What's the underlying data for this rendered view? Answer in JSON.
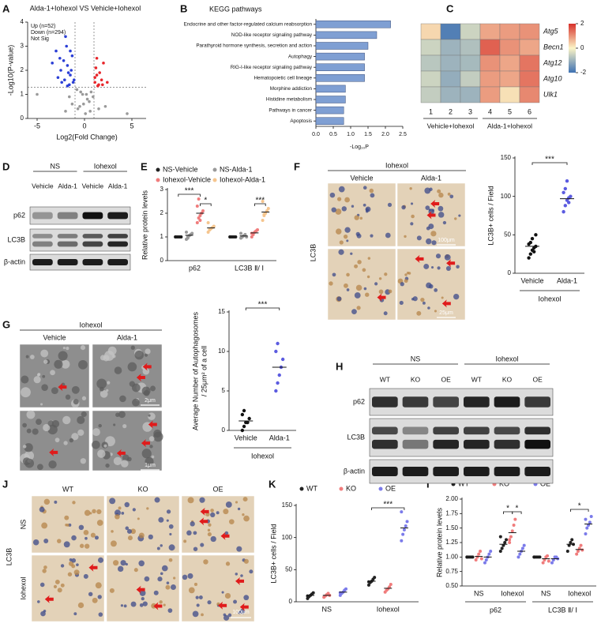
{
  "chart_data": [
    {
      "panel": "A",
      "type": "volcano",
      "title": "Alda-1+Iohexol VS Vehicle+Iohexol",
      "x_label": "Log2(Fold Change)",
      "y_label": "-Log10(P-value)",
      "xlim": [
        -6,
        6.5
      ],
      "xticks": [
        -5,
        0,
        5
      ],
      "ylim": [
        0,
        4
      ],
      "yticks": [
        0,
        1,
        2,
        3,
        4
      ],
      "thresholds": {
        "x": [
          -1,
          1
        ],
        "y": 1.3
      },
      "series": [
        {
          "name": "Up (n=52)",
          "color": "#e8262b",
          "x": [
            1.1,
            1.3,
            1.5,
            1.2,
            1.8,
            2.0,
            1.4,
            1.6,
            2.4,
            1.3,
            1.9,
            1.1
          ],
          "values": [
            1.5,
            1.8,
            1.4,
            2.1,
            1.6,
            2.3,
            1.35,
            1.9,
            1.5,
            2.5,
            1.4,
            1.7
          ]
        },
        {
          "name": "Down (n=294)",
          "color": "#2b3fd6",
          "x": [
            -1.2,
            -1.5,
            -1.8,
            -2.1,
            -1.3,
            -2.5,
            -1.6,
            -1.9,
            -2.8,
            -1.4,
            -2.2,
            -3.0,
            -1.7,
            -2.4,
            -1.1,
            -2.0,
            -3.4,
            -1.5,
            -2.6,
            -1.8
          ],
          "values": [
            1.5,
            1.8,
            2.2,
            1.6,
            2.6,
            2.0,
            1.4,
            3.0,
            1.7,
            2.0,
            2.4,
            2.8,
            1.9,
            1.5,
            1.6,
            3.4,
            2.3,
            2.8,
            2.5,
            1.35
          ]
        },
        {
          "name": "Not Sig",
          "color": "#9a9a9a",
          "x": [
            -0.5,
            0.3,
            -0.2,
            0.6,
            -0.8,
            0.1,
            0.9,
            -1.3,
            1.5,
            -0.4,
            0.5,
            -2.0,
            2.2,
            -0.1,
            0.2,
            -5.0,
            4.5,
            -0.7,
            0.7,
            -1.6
          ],
          "values": [
            0.5,
            0.8,
            1.0,
            0.3,
            1.2,
            0.2,
            0.9,
            0.6,
            0.4,
            1.1,
            0.7,
            0.3,
            0.5,
            0.6,
            1.0,
            1.0,
            0.2,
            0.4,
            1.1,
            0.9
          ]
        }
      ]
    },
    {
      "panel": "B",
      "type": "hbar",
      "title": "KEGG pathways",
      "x_label": "-Log₁₀P",
      "color": "#7f9fd3",
      "categories": [
        "Endocrine and other factor-regulated calcium reabsorption",
        "NOD-like receptor signaling pathway",
        "Parathyroid hormone synthesis, secretion and action",
        "Autophagy",
        "RIG-I-like receptor signaling pathway",
        "Hematopoietic cell lineage",
        "Morphine addiction",
        "Histidine metabolism",
        "Pathways in cancer",
        "Apoptosis"
      ],
      "values": [
        2.15,
        1.75,
        1.5,
        1.4,
        1.4,
        1.4,
        0.85,
        0.85,
        0.8,
        0.8
      ],
      "xlim": [
        0,
        2.5
      ],
      "xticks": [
        {
          "value": 0,
          "label": "0.0"
        },
        0.5,
        {
          "value": 1,
          "label": "1.0"
        },
        1.5,
        {
          "value": 2,
          "label": "2.0"
        },
        2.5
      ]
    },
    {
      "panel": "C",
      "type": "heatmap",
      "rows": [
        "Atg5",
        "Becn1",
        "Atg12",
        "Atg10",
        "Ulk1"
      ],
      "columns": [
        "1",
        "2",
        "3",
        "4",
        "5",
        "6"
      ],
      "column_groups": [
        "Vehicle+Iohexol",
        "Alda-1+Iohexol"
      ],
      "values": [
        [
          0.3,
          -1.8,
          -0.5,
          0.8,
          0.9,
          1.0
        ],
        [
          -0.5,
          -1.0,
          -0.8,
          1.5,
          1.0,
          0.8
        ],
        [
          -0.7,
          -1.0,
          -0.9,
          1.0,
          0.8,
          1.3
        ],
        [
          -0.5,
          -1.1,
          -0.6,
          0.9,
          0.8,
          1.3
        ],
        [
          -0.6,
          -1.0,
          -1.0,
          0.9,
          0.2,
          1.1
        ]
      ],
      "clim": [
        -2,
        2
      ],
      "cticks": [
        2,
        0,
        -2
      ],
      "colormap": [
        "#3f72b3",
        "#fbf4c6",
        "#d7302a"
      ]
    },
    {
      "panel": "E",
      "type": "dot",
      "y_label": "Relative protein levels",
      "categories": [
        "p62",
        "LC3B Ⅱ/ Ⅰ"
      ],
      "ylim": [
        0,
        3
      ],
      "yticks": [
        0,
        1,
        2,
        3
      ],
      "significance": [
        "***",
        "*",
        "***"
      ],
      "series": [
        {
          "name": "NS-Vehicle",
          "color": "#222222",
          "values": [
            1,
            1
          ],
          "points": [
            [
              1,
              1,
              1,
              1,
              1,
              1
            ],
            [
              1,
              1,
              1,
              1,
              1,
              1
            ]
          ]
        },
        {
          "name": "NS-Alda-1",
          "color": "#9a9a9a",
          "values": [
            1.07,
            1.04
          ],
          "points": [
            [
              0.9,
              1.0,
              1.05,
              1.1,
              1.15,
              1.2,
              0.95
            ],
            [
              0.95,
              1.0,
              1.05,
              1.1,
              1.0,
              1.15
            ]
          ]
        },
        {
          "name": "Iohexol-Vehicle",
          "color": "#f07c7c",
          "values": [
            2.0,
            1.17
          ],
          "points": [
            [
              1.6,
              1.8,
              1.9,
              2.0,
              2.1,
              2.3,
              2.6,
              1.7
            ],
            [
              1.0,
              1.1,
              1.2,
              1.25,
              1.3,
              1.15
            ]
          ]
        },
        {
          "name": "Iohexol-Alda-1",
          "color": "#f5c58e",
          "values": [
            1.38,
            2.05
          ],
          "points": [
            [
              1.2,
              1.3,
              1.35,
              1.4,
              1.45,
              1.6,
              1.3
            ],
            [
              1.7,
              1.9,
              2.0,
              2.1,
              2.2,
              2.5,
              1.95
            ]
          ]
        }
      ]
    },
    {
      "type": "dot",
      "y_label": "LC3B+ cells / Field",
      "categories": [
        "Vehicle",
        "Alda-1"
      ],
      "group_label": "Iohexol",
      "colors": [
        "#111111",
        "#5b5be0"
      ],
      "ylim": [
        0,
        150
      ],
      "yticks": [
        0,
        50,
        100,
        150
      ],
      "significance": [
        "***"
      ],
      "values": [
        35,
        97
      ],
      "points": [
        [
          20,
          25,
          30,
          33,
          35,
          38,
          40,
          45,
          28,
          50
        ],
        [
          80,
          88,
          95,
          98,
          100,
          105,
          110,
          120,
          92
        ]
      ]
    },
    {
      "type": "dot",
      "y_label": [
        "Average Number of Autophagosomes",
        "/ 25μm² of a cell"
      ],
      "categories": [
        "Vehicle",
        "Alda-1"
      ],
      "group_label": "Iohexol",
      "colors": [
        "#111111",
        "#5b5be0"
      ],
      "ylim": [
        0,
        15
      ],
      "yticks": [
        0,
        5,
        10,
        15
      ],
      "significance": [
        "***"
      ],
      "values": [
        1.2,
        8
      ],
      "points": [
        [
          0,
          0.5,
          1,
          1,
          1.5,
          2,
          2.5
        ],
        [
          5,
          6,
          7,
          8,
          9,
          10,
          11
        ]
      ]
    },
    {
      "panel": "K",
      "type": "dot",
      "y_label": "LC3B+ cells / Field",
      "categories": [
        "NS",
        "Iohexol"
      ],
      "ylim": [
        0,
        150
      ],
      "yticks": [
        0,
        50,
        100,
        150
      ],
      "significance": [
        "***"
      ],
      "series": [
        {
          "name": "WT",
          "color": "#222222",
          "values": [
            10,
            32
          ],
          "points": [
            [
              5,
              8,
              10,
              12,
              14,
              9
            ],
            [
              26,
              30,
              32,
              35,
              38,
              31
            ]
          ]
        },
        {
          "name": "KO",
          "color": "#f07c7c",
          "values": [
            10,
            21
          ],
          "points": [
            [
              7,
              9,
              11,
              13,
              10
            ],
            [
              15,
              18,
              20,
              23,
              27
            ]
          ]
        },
        {
          "name": "OE",
          "color": "#7b7bea",
          "values": [
            15,
            115
          ],
          "points": [
            [
              10,
              13,
              15,
              18,
              20,
              14
            ],
            [
              95,
              105,
              112,
              118,
              125,
              140
            ]
          ]
        }
      ]
    },
    {
      "panel": "I",
      "type": "dot",
      "y_label": "Relative protein levels",
      "categories": [
        "NS",
        "Iohexol",
        "NS",
        "Iohexol"
      ],
      "category_groups": [
        "p62",
        "LC3B Ⅱ/ Ⅰ"
      ],
      "ylim": [
        0.5,
        2.0
      ],
      "yticks": [
        {
          "value": 0.5,
          "label": "0.50"
        },
        0.75,
        {
          "value": 1,
          "label": "1.00"
        },
        1.25,
        {
          "value": 1.5,
          "label": "1.50"
        },
        1.75,
        {
          "value": 2,
          "label": "2.00"
        }
      ],
      "significance": [
        "*",
        "*",
        "*"
      ],
      "series": [
        {
          "name": "WT",
          "color": "#222222",
          "values": [
            1,
            1.22,
            1,
            1.22
          ],
          "points": [
            [
              1,
              1,
              1,
              1,
              1,
              1
            ],
            [
              1.1,
              1.15,
              1.2,
              1.25,
              1.3,
              1.35
            ],
            [
              1,
              1,
              1,
              1,
              1,
              1
            ],
            [
              1.1,
              1.2,
              1.25,
              1.3,
              1.22
            ]
          ]
        },
        {
          "name": "KO",
          "color": "#f07c7c",
          "values": [
            1.01,
            1.42,
            0.97,
            1.13
          ],
          "points": [
            [
              0.95,
              1.0,
              1.05,
              1.1,
              0.97
            ],
            [
              1.25,
              1.35,
              1.45,
              1.55,
              1.65,
              1.3
            ],
            [
              0.9,
              0.95,
              1.0,
              1.02,
              0.93
            ],
            [
              1.05,
              1.1,
              1.15,
              1.2,
              1.12
            ]
          ]
        },
        {
          "name": "OE",
          "color": "#7b7bea",
          "values": [
            1.0,
            1.1,
            0.97,
            1.57
          ],
          "points": [
            [
              0.9,
              0.95,
              1.0,
              1.05,
              1.1
            ],
            [
              1.0,
              1.05,
              1.1,
              1.15,
              1.2
            ],
            [
              0.9,
              0.95,
              1.0,
              1.0,
              0.97
            ],
            [
              1.4,
              1.5,
              1.55,
              1.6,
              1.7,
              1.65
            ]
          ]
        }
      ]
    }
  ],
  "blots": {
    "D": {
      "panel": "D",
      "groups": [
        "NS",
        "Iohexol"
      ],
      "lanes": [
        "Vehicle",
        "Alda-1",
        "Vehicle",
        "Alda-1"
      ],
      "rows": [
        "p62",
        "LC3B",
        "β-actin"
      ]
    },
    "H": {
      "panel": "H",
      "groups": [
        "NS",
        "Iohexol"
      ],
      "lanes": [
        "WT",
        "KO",
        "OE",
        "WT",
        "KO",
        "OE"
      ],
      "rows": [
        "p62",
        "LC3B",
        "β-actin"
      ]
    }
  },
  "images": {
    "F": {
      "panel": "F",
      "group": "Iohexol",
      "columns": [
        "Vehicle",
        "Alda-1"
      ],
      "row_label": "LC3B",
      "scale_bars": [
        "100μm",
        "25μm"
      ]
    },
    "G": {
      "panel": "G",
      "group": "Iohexol",
      "columns": [
        "Vehicle",
        "Alda-1"
      ],
      "scale_bars": [
        "2μm",
        "1μm"
      ]
    },
    "J": {
      "panel": "J",
      "columns": [
        "WT",
        "KO",
        "OE"
      ],
      "rows": [
        "NS",
        "Iohexol"
      ],
      "stain": "LC3B",
      "scale_bar": "100μm"
    }
  }
}
